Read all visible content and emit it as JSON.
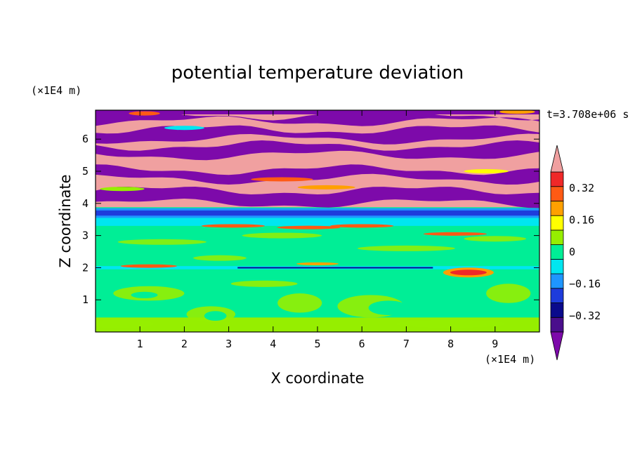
{
  "chart_data": {
    "type": "heatmap",
    "title": "potential temperature deviation",
    "xlabel": "X coordinate",
    "ylabel": "Z coordinate",
    "x_unit": "(×1E4 m)",
    "y_unit": "(×1E4 m)",
    "time_label": "t=3.708e+06 s",
    "xlim": [
      0,
      10
    ],
    "ylim": [
      0,
      6.9
    ],
    "x_ticks": [
      "1",
      "2",
      "3",
      "4",
      "5",
      "6",
      "7",
      "8",
      "9"
    ],
    "y_ticks": [
      "1",
      "2",
      "3",
      "4",
      "5",
      "6"
    ],
    "colorbar": {
      "levels": [
        -0.4,
        -0.32,
        -0.24,
        -0.16,
        -0.08,
        0,
        0.08,
        0.16,
        0.24,
        0.32,
        0.4
      ],
      "tick_labels": [
        "0.32",
        "0.16",
        "0",
        "−0.16",
        "−0.32"
      ],
      "colors_bottom_to_top": [
        "#4a0e8c",
        "#0a0a8c",
        "#1e3cdc",
        "#1e96ff",
        "#00e6f0",
        "#00ee96",
        "#96ee00",
        "#ffff00",
        "#ffa000",
        "#ff5a14",
        "#f02828"
      ],
      "over_color": "#f0a0a0",
      "under_color": "#7d0aaa"
    },
    "field_bands": [
      {
        "z_range": [
          3.9,
          6.9
        ],
        "pattern": "alternating layers",
        "colors": [
          "#f0a0a0",
          "#7d0aaa"
        ]
      },
      {
        "z_range": [
          3.55,
          3.85
        ],
        "pattern": "layer",
        "colors": [
          "#1e96ff"
        ]
      },
      {
        "z_range": [
          3.3,
          3.55
        ],
        "pattern": "layer",
        "colors": [
          "#00e6f0"
        ]
      },
      {
        "z_range": [
          2.05,
          3.3
        ],
        "pattern": "mostly",
        "colors": [
          "#00ee96"
        ]
      },
      {
        "z_range": [
          1.95,
          2.05
        ],
        "pattern": "thin line",
        "colors": [
          "#0a0a8c",
          "#00e6f0"
        ]
      },
      {
        "z_range": [
          0,
          1.95
        ],
        "pattern": "eddies",
        "colors": [
          "#00ee96",
          "#96ee00"
        ]
      }
    ]
  }
}
